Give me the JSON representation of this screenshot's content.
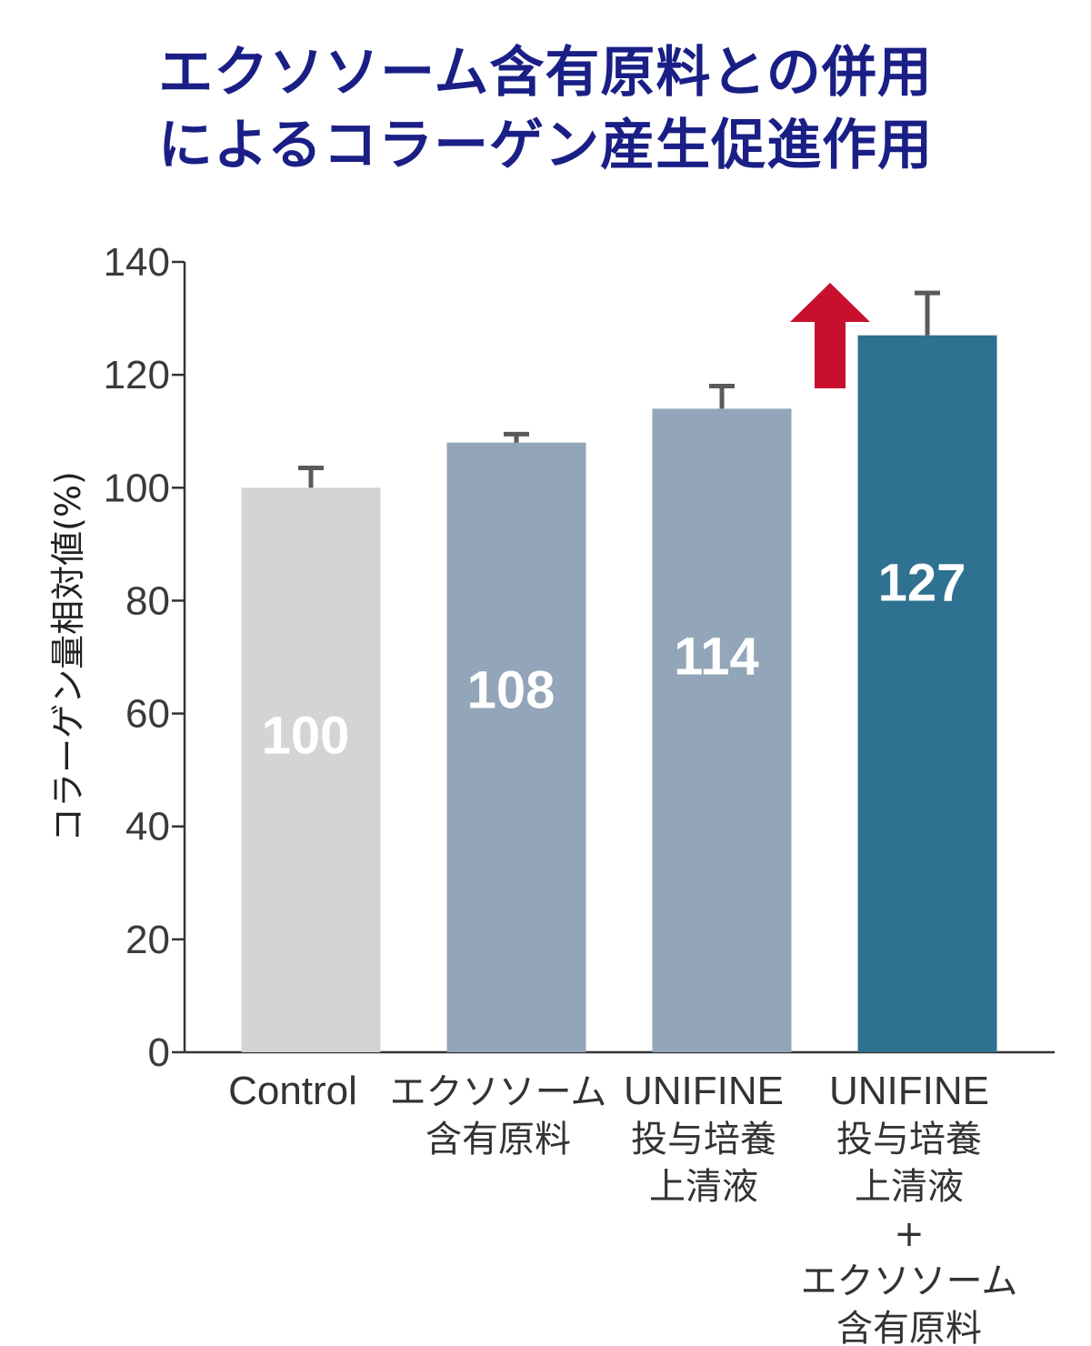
{
  "chart_data": {
    "type": "bar",
    "title": "エクソソーム含有原料との併用",
    "subtitle": "によるコラーゲン産生促進作用",
    "ylabel": "コラーゲン量相対値(%)",
    "xlabel": "",
    "ylim": [
      0,
      140
    ],
    "yticks": [
      "0",
      "20",
      "40",
      "60",
      "80",
      "100",
      "120",
      "140"
    ],
    "grid": false,
    "categories": [
      [
        "Control"
      ],
      [
        "エクソソーム",
        "含有原料"
      ],
      [
        "UNIFINE",
        "投与培養",
        "上清液"
      ],
      [
        "UNIFINE",
        "投与培養",
        "上清液",
        "+",
        "エクソソーム",
        "含有原料"
      ]
    ],
    "values": [
      100,
      108,
      114,
      127
    ],
    "data_labels": [
      "100",
      "108",
      "114",
      "127"
    ],
    "error_bars": [
      3.5,
      1.5,
      4.0,
      7.5
    ],
    "colors": [
      "#d4d4d4",
      "#93a5b8",
      "#93a5b8",
      "#2e7190"
    ],
    "annotation": {
      "type": "up-arrow",
      "color": "#c8102e",
      "near_category": 3
    }
  }
}
